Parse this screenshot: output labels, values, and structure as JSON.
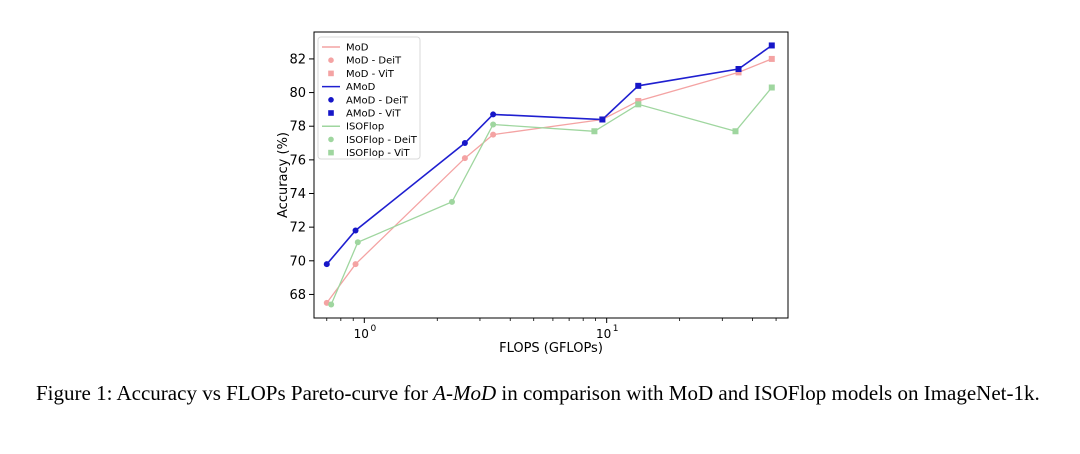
{
  "chart_data": {
    "type": "line",
    "xlabel": "FLOPS (GFLOPs)",
    "ylabel": "Accuracy (%)",
    "xscale": "log",
    "xlim": [
      0.62,
      56
    ],
    "ylim": [
      66.6,
      83.6
    ],
    "xticks": [
      {
        "value": 1,
        "label": "10",
        "exp": "0"
      },
      {
        "value": 10,
        "label": "10",
        "exp": "1"
      }
    ],
    "yticks": [
      68,
      70,
      72,
      74,
      76,
      78,
      80,
      82
    ],
    "grid": false,
    "legend_position": "top-left",
    "series": [
      {
        "name": "MoD",
        "kind": "line",
        "color": "#f4a3a3",
        "x": [
          0.7,
          0.92,
          2.6,
          3.4,
          9.6,
          13.5,
          35,
          48
        ],
        "y": [
          67.5,
          69.8,
          76.1,
          77.5,
          78.4,
          79.5,
          81.2,
          82.0
        ]
      },
      {
        "name": "MoD - DeiT",
        "kind": "circle",
        "color": "#f4a3a3",
        "x": [
          0.7,
          0.92,
          2.6,
          3.4
        ],
        "y": [
          67.5,
          69.8,
          76.1,
          77.5
        ]
      },
      {
        "name": "MoD - ViT",
        "kind": "square",
        "color": "#f4a3a3",
        "x": [
          9.6,
          13.5,
          35,
          48
        ],
        "y": [
          78.4,
          79.5,
          81.2,
          82.0
        ]
      },
      {
        "name": "AMoD",
        "kind": "line",
        "color": "#1f1fd0",
        "x": [
          0.7,
          0.92,
          2.6,
          3.4,
          9.6,
          13.5,
          35,
          48
        ],
        "y": [
          69.8,
          71.8,
          77.0,
          78.7,
          78.4,
          80.4,
          81.4,
          82.8
        ]
      },
      {
        "name": "AMoD - DeiT",
        "kind": "circle",
        "color": "#1616c8",
        "x": [
          0.7,
          0.92,
          2.6,
          3.4
        ],
        "y": [
          69.8,
          71.8,
          77.0,
          78.7
        ]
      },
      {
        "name": "AMoD - ViT",
        "kind": "square",
        "color": "#1616c8",
        "x": [
          9.6,
          13.5,
          35,
          48
        ],
        "y": [
          78.4,
          80.4,
          81.4,
          82.8
        ]
      },
      {
        "name": "ISOFlop",
        "kind": "line",
        "color": "#9fd69f",
        "x": [
          0.73,
          0.94,
          2.3,
          3.4,
          8.9,
          13.5,
          34,
          48
        ],
        "y": [
          67.4,
          71.1,
          73.5,
          78.1,
          77.7,
          79.3,
          77.7,
          80.3
        ]
      },
      {
        "name": "ISOFlop - DeiT",
        "kind": "circle",
        "color": "#9fd69f",
        "x": [
          0.73,
          0.94,
          2.3,
          3.4
        ],
        "y": [
          67.4,
          71.1,
          73.5,
          78.1
        ]
      },
      {
        "name": "ISOFlop - ViT",
        "kind": "square",
        "color": "#9fd69f",
        "x": [
          8.9,
          13.5,
          34,
          48
        ],
        "y": [
          77.7,
          79.3,
          77.7,
          80.3
        ]
      }
    ]
  },
  "caption": {
    "prefix": "Figure 1:  Accuracy vs FLOPs Pareto-curve for ",
    "emph": "A-MoD",
    "suffix": " in comparison with MoD and ISOFlop models on ImageNet-1k."
  }
}
